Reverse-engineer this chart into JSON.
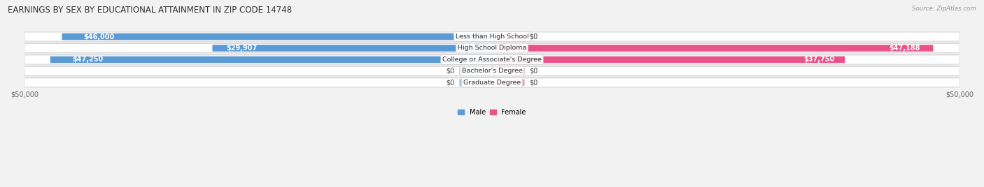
{
  "title": "EARNINGS BY SEX BY EDUCATIONAL ATTAINMENT IN ZIP CODE 14748",
  "source": "Source: ZipAtlas.com",
  "categories": [
    "Less than High School",
    "High School Diploma",
    "College or Associate's Degree",
    "Bachelor's Degree",
    "Graduate Degree"
  ],
  "male_values": [
    46000,
    29907,
    47250,
    0,
    0
  ],
  "female_values": [
    0,
    47188,
    37750,
    0,
    0
  ],
  "male_labels": [
    "$46,000",
    "$29,907",
    "$47,250",
    "$0",
    "$0"
  ],
  "female_labels": [
    "$0",
    "$47,188",
    "$37,750",
    "$0",
    "$0"
  ],
  "male_color": "#5b9bd5",
  "male_color_pale": "#aac8e8",
  "female_color": "#e8538a",
  "female_color_pale": "#f4a8c4",
  "max_val": 50000,
  "zero_stub": 3500,
  "background_color": "#f2f2f2",
  "row_bg_color": "#f8f8f8",
  "title_fontsize": 8.5,
  "label_fontsize": 7.0,
  "category_fontsize": 6.8,
  "axis_label_fontsize": 7.0
}
